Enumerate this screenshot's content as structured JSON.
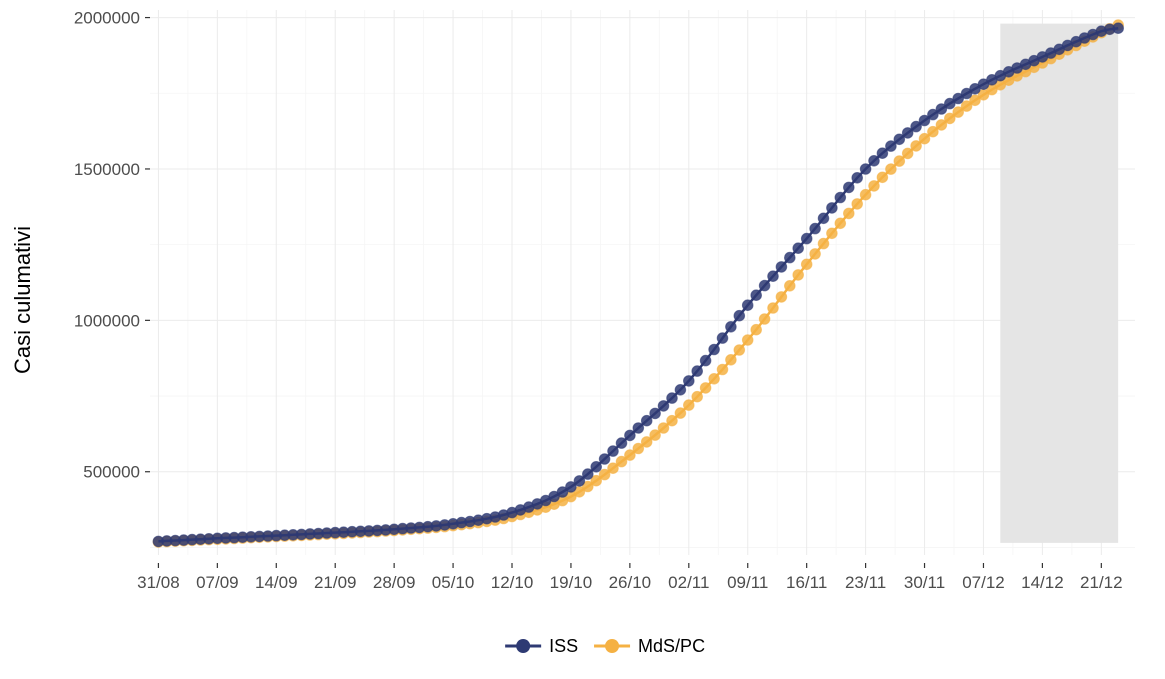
{
  "chart_data": {
    "type": "line",
    "title": "",
    "xlabel": "",
    "ylabel": "Casi culumativi",
    "x_ticks": [
      "31/08",
      "07/09",
      "14/09",
      "21/09",
      "28/09",
      "05/10",
      "12/10",
      "19/10",
      "26/10",
      "02/11",
      "09/11",
      "16/11",
      "23/11",
      "30/11",
      "07/12",
      "14/12",
      "21/12"
    ],
    "x_range_days": [
      -1,
      116
    ],
    "ylim": [
      225000,
      2025000
    ],
    "y_ticks": [
      500000,
      1000000,
      1500000,
      2000000
    ],
    "y_tick_labels": [
      "500000",
      "1000000",
      "1500000",
      "2000000"
    ],
    "grid": true,
    "legend_position": "bottom",
    "shaded_region": {
      "from": "09/12",
      "to": "23/12",
      "ymin": 265000,
      "ymax": 1980000,
      "color": "#e5e5e5"
    },
    "series": [
      {
        "name": "ISS",
        "color": "#2e3a73",
        "anchors": [
          [
            "31/08",
            270000
          ],
          [
            "07/09",
            280000
          ],
          [
            "14/09",
            289000
          ],
          [
            "21/09",
            299000
          ],
          [
            "28/09",
            310000
          ],
          [
            "05/10",
            328000
          ],
          [
            "12/10",
            365000
          ],
          [
            "19/10",
            450000
          ],
          [
            "26/10",
            620000
          ],
          [
            "02/11",
            800000
          ],
          [
            "09/11",
            1050000
          ],
          [
            "16/11",
            1270000
          ],
          [
            "23/11",
            1500000
          ],
          [
            "30/11",
            1660000
          ],
          [
            "07/12",
            1780000
          ],
          [
            "14/12",
            1870000
          ],
          [
            "21/12",
            1955000
          ],
          [
            "23/12",
            1965000
          ]
        ]
      },
      {
        "name": "MdS/PC",
        "color": "#f5b143",
        "anchors": [
          [
            "31/08",
            268000
          ],
          [
            "07/09",
            277000
          ],
          [
            "14/09",
            286000
          ],
          [
            "21/09",
            295000
          ],
          [
            "28/09",
            306000
          ],
          [
            "05/10",
            322000
          ],
          [
            "12/10",
            352000
          ],
          [
            "19/10",
            418000
          ],
          [
            "26/10",
            555000
          ],
          [
            "02/11",
            720000
          ],
          [
            "09/11",
            935000
          ],
          [
            "16/11",
            1185000
          ],
          [
            "23/11",
            1415000
          ],
          [
            "30/11",
            1600000
          ],
          [
            "07/12",
            1745000
          ],
          [
            "14/12",
            1850000
          ],
          [
            "21/12",
            1950000
          ],
          [
            "23/12",
            1975000
          ]
        ]
      }
    ]
  }
}
